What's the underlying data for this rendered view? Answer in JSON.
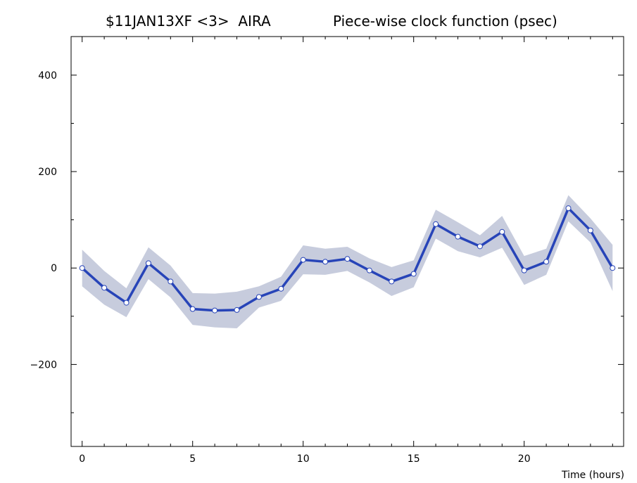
{
  "header": {
    "experiment": "$11JAN13XF <3>",
    "station": "AIRA",
    "function_title": "Piece-wise clock function (psec)"
  },
  "chart_data": {
    "type": "line",
    "title": "Piece-wise clock function (psec)",
    "xlabel": "Time (hours)",
    "ylabel": "",
    "xlim": [
      -0.5,
      24.5
    ],
    "ylim": [
      -370,
      480
    ],
    "x_ticks": [
      0,
      5,
      10,
      15,
      20
    ],
    "y_ticks": [
      -200,
      0,
      200,
      400
    ],
    "grid": false,
    "series": [
      {
        "x": [
          0,
          1,
          2,
          3,
          4,
          5,
          6,
          7,
          8,
          9,
          10,
          11,
          12,
          13,
          14,
          15,
          16,
          17,
          18,
          19,
          20,
          21,
          22,
          23,
          24
        ],
        "values": [
          0,
          -41,
          -72,
          10,
          -28,
          -85,
          -88,
          -87,
          -60,
          -43,
          17,
          13,
          19,
          -5,
          -28,
          -12,
          91,
          65,
          45,
          75,
          -5,
          13,
          124,
          78,
          0
        ],
        "uncertainty": [
          38,
          35,
          30,
          33,
          33,
          33,
          35,
          38,
          22,
          25,
          30,
          27,
          25,
          25,
          30,
          28,
          30,
          30,
          23,
          33,
          30,
          27,
          27,
          25,
          48
        ]
      }
    ],
    "colors": {
      "line": "#2744b8",
      "band": "#c7ccdd",
      "marker_fill": "#ffffff",
      "marker_edge": "#2744b8"
    }
  }
}
